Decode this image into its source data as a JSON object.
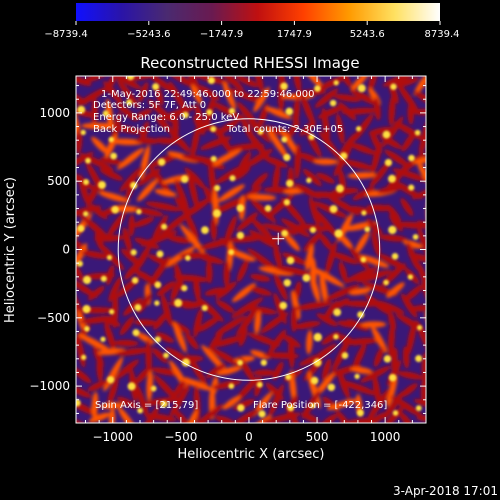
{
  "chart_data": {
    "type": "heatmap",
    "title": "Reconstructed RHESSI Image",
    "xlabel": "Heliocentric X (arcsec)",
    "ylabel": "Heliocentric Y (arcsec)",
    "xlim": [
      -1270,
      1300
    ],
    "ylim": [
      -1270,
      1270
    ],
    "x_ticks": [
      -1000,
      -500,
      0,
      500,
      1000
    ],
    "y_ticks": [
      -1000,
      -500,
      0,
      500,
      1000
    ],
    "x_tick_labels": [
      "−1000",
      "−500",
      "0",
      "500",
      "1000"
    ],
    "y_tick_labels": [
      "−1000",
      "−500",
      "0",
      "500",
      "1000"
    ],
    "colorbar": {
      "ticks": [
        -8739.4,
        -5243.6,
        -1747.9,
        1747.9,
        5243.6,
        8739.4
      ],
      "tick_labels": [
        "−8739.4",
        "−5243.6",
        "−1747.9",
        "1747.9",
        "5243.6",
        "8739.4"
      ],
      "colors": [
        "#1010ff",
        "#2a14a8",
        "#4a2a70",
        "#6a1a50",
        "#c01010",
        "#ff4000",
        "#ff9a00",
        "#ffe060",
        "#ffffff"
      ]
    },
    "annotations": [
      "1-May-2016 22:49:46.000 to 22:59:46.000",
      "Detectors: 5F 7F, Att 0",
      "Energy Range: 6.0 - 25.0 keV",
      "Back Projection",
      "Total counts: 2.30E+05"
    ],
    "footer_left": "Spin Axis = [215,79]",
    "footer_right": "Flare Position = [-422,346]",
    "solar_disk": {
      "center": [
        0,
        0
      ],
      "radius": 960
    },
    "flare_marker": [
      215,
      79
    ],
    "pattern_colors": {
      "background": "#3a1878",
      "ridge": "#b01010",
      "ridge_hot": "#ff5500",
      "blob": "#ffe040"
    }
  },
  "timestamp": "3-Apr-2018 17:01"
}
